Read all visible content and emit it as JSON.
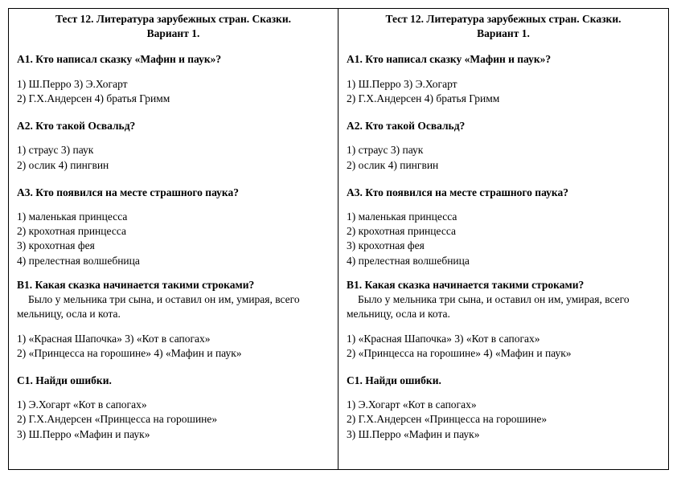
{
  "title_line1": "Тест 12. Литература зарубежных стран. Сказки.",
  "title_line2": "Вариант 1.",
  "q_a1": "А1. Кто написал сказку «Мафин и паук»?",
  "a1_l1a": "1) Ш.Перро",
  "a1_l1b": "3) Э.Хогарт",
  "a1_l2a": "2) Г.Х.Андерсен",
  "a1_l2b": "4) братья Гримм",
  "q_a2": "А2. Кто такой Освальд?",
  "a2_l1a": "1) страус",
  "a2_l1b": "3) паук",
  "a2_l2a": "2) ослик",
  "a2_l2b": "4) пингвин",
  "q_a3": "А3. Кто появился на месте страшного паука?",
  "a3_o1": "1) маленькая принцесса",
  "a3_o2": "2) крохотная принцесса",
  "a3_o3": "3) крохотная фея",
  "a3_o4": "4) прелестная волшебница",
  "q_b1_head": "В1. Какая сказка начинается такими строками?",
  "q_b1_text": "Было у мельника три сына, и оставил он им, умирая, всего мельницу, осла и кота.",
  "b1_l1a": "1) «Красная Шапочка»",
  "b1_l1b": "3) «Кот в сапогах»",
  "b1_l2a": "2) «Принцесса на горошине»",
  "b1_l2b": "4) «Мафин и паук»",
  "q_c1": "С1. Найди ошибки.",
  "c1_o1": "1) Э.Хогарт «Кот в сапогах»",
  "c1_o2": "2) Г.Х.Андерсен «Принцесса на горошине»",
  "c1_o3": "3) Ш.Перро «Мафин и паук»"
}
